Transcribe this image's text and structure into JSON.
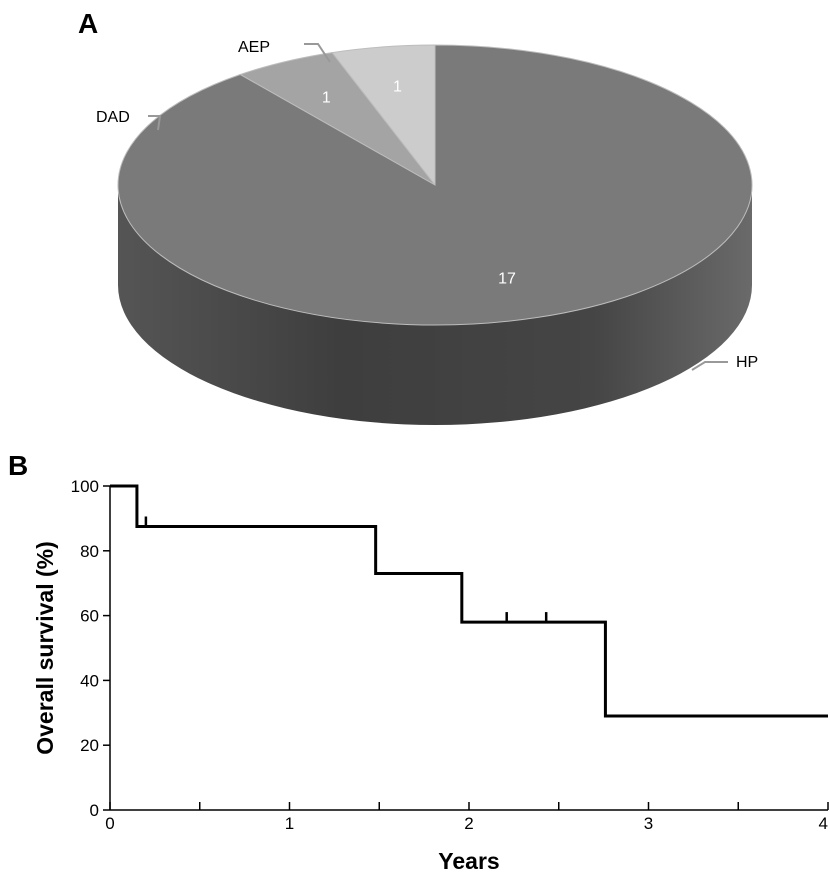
{
  "panels": {
    "a_label": "A",
    "b_label": "B"
  },
  "chart_data": [
    {
      "type": "pie",
      "panel": "A",
      "style": "3d",
      "categories": [
        "HP",
        "DAD",
        "AEP"
      ],
      "values": [
        17,
        1,
        1
      ],
      "data_labels": [
        "17",
        "1",
        "1"
      ],
      "colors": {
        "HP": "#7a7a7a",
        "DAD": "#a4a4a4",
        "AEP": "#cccccc"
      }
    },
    {
      "type": "line",
      "subtype": "step",
      "panel": "B",
      "xlabel": "Years",
      "ylabel": "Overall survival (%)",
      "xlim": [
        0,
        4
      ],
      "ylim": [
        0,
        100
      ],
      "x_ticks": [
        0,
        1,
        2,
        3,
        4
      ],
      "x_tick_labels": [
        "0",
        "1",
        "2",
        "3",
        "4"
      ],
      "x_minor_ticks": [
        0.5,
        1.5,
        2.5,
        3.5
      ],
      "y_ticks": [
        0,
        20,
        40,
        60,
        80,
        100
      ],
      "y_tick_labels": [
        "0",
        "20",
        "40",
        "60",
        "80",
        "100"
      ],
      "grid": false,
      "series": [
        {
          "points": [
            [
              0,
              100
            ],
            [
              0.15,
              100
            ],
            [
              0.15,
              87.5
            ],
            [
              1.48,
              87.5
            ],
            [
              1.48,
              73
            ],
            [
              1.96,
              73
            ],
            [
              1.96,
              58
            ],
            [
              2.76,
              58
            ],
            [
              2.76,
              29
            ],
            [
              4.0,
              29
            ]
          ],
          "censor_marks": [
            [
              0.2,
              87.5
            ],
            [
              2.21,
              58
            ],
            [
              2.43,
              58
            ]
          ]
        }
      ]
    }
  ]
}
